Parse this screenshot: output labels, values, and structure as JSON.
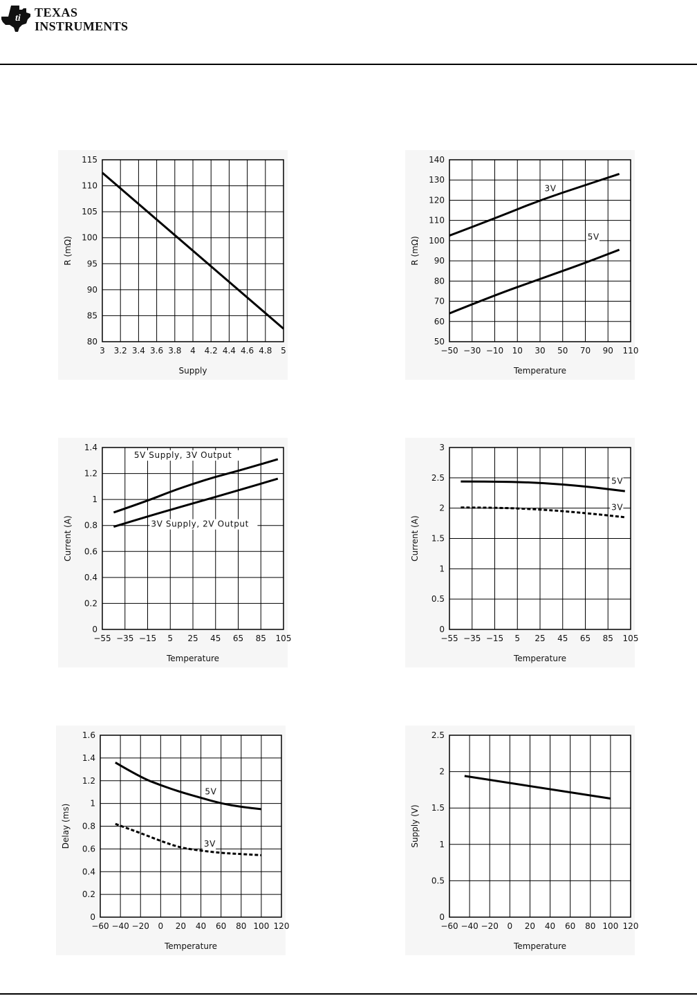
{
  "header": {
    "logo_line1": "Texas",
    "logo_line2": "Instruments"
  },
  "chart_data": [
    {
      "type": "line",
      "xlabel": "Supply",
      "ylabel": "R (mΩ)",
      "xlim": [
        3,
        5
      ],
      "ylim": [
        80,
        115
      ],
      "xticks": [
        "3",
        "3.2",
        "3.4",
        "3.6",
        "3.8",
        "4",
        "4.2",
        "4.4",
        "4.6",
        "4.8",
        "5"
      ],
      "xtick_values": [
        3,
        3.2,
        3.4,
        3.6,
        3.8,
        4,
        4.2,
        4.4,
        4.6,
        4.8,
        5
      ],
      "yticks": [
        "80",
        "85",
        "90",
        "95",
        "100",
        "105",
        "110",
        "115"
      ],
      "ytick_values": [
        80,
        85,
        90,
        95,
        100,
        105,
        110,
        115
      ],
      "grid": true,
      "series": [
        {
          "name": "",
          "style": "solid",
          "x": [
            3,
            5
          ],
          "y": [
            112.5,
            82.5
          ]
        }
      ]
    },
    {
      "type": "line",
      "xlabel": "Temperature",
      "ylabel": "R (mΩ)",
      "xlim": [
        -50,
        110
      ],
      "ylim": [
        50,
        140
      ],
      "xticks": [
        "−50",
        "−30",
        "−10",
        "10",
        "30",
        "50",
        "70",
        "90",
        "110"
      ],
      "xtick_values": [
        -50,
        -30,
        -10,
        10,
        30,
        50,
        70,
        90,
        110
      ],
      "yticks": [
        "50",
        "60",
        "70",
        "80",
        "90",
        "100",
        "110",
        "120",
        "130",
        "140"
      ],
      "ytick_values": [
        50,
        60,
        70,
        80,
        90,
        100,
        110,
        120,
        130,
        140
      ],
      "grid": true,
      "series": [
        {
          "name": "3V",
          "style": "solid",
          "x": [
            -50,
            -10,
            30,
            70,
            100
          ],
          "y": [
            102.5,
            111,
            120,
            127.5,
            133
          ],
          "label_at": [
            34,
            124.5
          ]
        },
        {
          "name": "5V",
          "style": "solid",
          "x": [
            -50,
            -10,
            30,
            70,
            100
          ],
          "y": [
            64,
            73,
            81,
            89,
            95.5
          ],
          "label_at": [
            72,
            100.5
          ]
        }
      ]
    },
    {
      "type": "line",
      "xlabel": "Temperature",
      "ylabel": "Current (A)",
      "xlim": [
        -55,
        105
      ],
      "ylim": [
        0,
        1.4
      ],
      "xticks": [
        "−55",
        "−35",
        "−15",
        "5",
        "25",
        "45",
        "65",
        "85",
        "105"
      ],
      "xtick_values": [
        -55,
        -35,
        -15,
        5,
        25,
        45,
        65,
        85,
        105
      ],
      "yticks": [
        "0",
        "0.2",
        "0.4",
        "0.6",
        "0.8",
        "1",
        "1.2",
        "1.4"
      ],
      "ytick_values": [
        0,
        0.2,
        0.4,
        0.6,
        0.8,
        1,
        1.2,
        1.4
      ],
      "grid": true,
      "series": [
        {
          "name": "5V Supply, 3V Output",
          "style": "solid",
          "x": [
            -45,
            -15,
            5,
            25,
            45,
            65,
            100
          ],
          "y": [
            0.9,
            0.99,
            1.06,
            1.12,
            1.175,
            1.22,
            1.31
          ],
          "label_at": [
            -27,
            1.32
          ]
        },
        {
          "name": "3V Supply, 2V Output",
          "style": "solid",
          "x": [
            -45,
            -15,
            25,
            65,
            100
          ],
          "y": [
            0.79,
            0.87,
            0.97,
            1.07,
            1.16
          ],
          "label_at": [
            -12,
            0.79
          ]
        }
      ]
    },
    {
      "type": "line",
      "xlabel": "Temperature",
      "ylabel": "Current (A)",
      "xlim": [
        -55,
        105
      ],
      "ylim": [
        0,
        3
      ],
      "xticks": [
        "−55",
        "−35",
        "−15",
        "5",
        "25",
        "45",
        "65",
        "85",
        "105"
      ],
      "xtick_values": [
        -55,
        -35,
        -15,
        5,
        25,
        45,
        65,
        85,
        105
      ],
      "yticks": [
        "0",
        "0.5",
        "1",
        "1.5",
        "2",
        "2.5",
        "3"
      ],
      "ytick_values": [
        0,
        0.5,
        1,
        1.5,
        2,
        2.5,
        3
      ],
      "grid": true,
      "series": [
        {
          "name": "5V",
          "style": "solid",
          "x": [
            -45,
            -15,
            25,
            65,
            100
          ],
          "y": [
            2.44,
            2.44,
            2.42,
            2.36,
            2.28
          ],
          "label_at": [
            88,
            2.4
          ]
        },
        {
          "name": "3V",
          "style": "dashed",
          "x": [
            -45,
            -15,
            25,
            65,
            100
          ],
          "y": [
            2.01,
            2.01,
            1.98,
            1.92,
            1.85
          ],
          "label_at": [
            88,
            1.97
          ]
        }
      ]
    },
    {
      "type": "line",
      "xlabel": "Temperature",
      "ylabel": "Delay (ms)",
      "xlim": [
        -60,
        120
      ],
      "ylim": [
        0,
        1.6
      ],
      "xticks": [
        "−60",
        "−40",
        "−20",
        "0",
        "20",
        "40",
        "60",
        "80",
        "100",
        "120"
      ],
      "xtick_values": [
        -60,
        -40,
        -20,
        0,
        20,
        40,
        60,
        80,
        100,
        120
      ],
      "yticks": [
        "0",
        "0.2",
        "0.4",
        "0.6",
        "0.8",
        "1",
        "1.2",
        "1.4",
        "1.6"
      ],
      "ytick_values": [
        0,
        0.2,
        0.4,
        0.6,
        0.8,
        1,
        1.2,
        1.4,
        1.6
      ],
      "grid": true,
      "series": [
        {
          "name": "5V",
          "style": "solid",
          "x": [
            -45,
            -20,
            0,
            20,
            40,
            60,
            80,
            100
          ],
          "y": [
            1.36,
            1.23,
            1.16,
            1.1,
            1.05,
            1.0,
            0.97,
            0.95
          ],
          "label_at": [
            44,
            1.08
          ]
        },
        {
          "name": "3V",
          "style": "dashed",
          "x": [
            -45,
            -20,
            0,
            20,
            40,
            60,
            80,
            100
          ],
          "y": [
            0.82,
            0.74,
            0.67,
            0.61,
            0.585,
            0.565,
            0.555,
            0.545
          ],
          "label_at": [
            43,
            0.62
          ]
        }
      ]
    },
    {
      "type": "line",
      "xlabel": "Temperature",
      "ylabel": "Supply (V)",
      "xlim": [
        -60,
        120
      ],
      "ylim": [
        0,
        2.5
      ],
      "xticks": [
        "−60",
        "−40",
        "−20",
        "0",
        "20",
        "40",
        "60",
        "80",
        "100",
        "120"
      ],
      "xtick_values": [
        -60,
        -40,
        -20,
        0,
        20,
        40,
        60,
        80,
        100,
        120
      ],
      "yticks": [
        "0",
        "0.5",
        "1",
        "1.5",
        "2",
        "2.5"
      ],
      "ytick_values": [
        0,
        0.5,
        1,
        1.5,
        2,
        2.5
      ],
      "grid": true,
      "series": [
        {
          "name": "",
          "style": "solid",
          "x": [
            -45,
            100
          ],
          "y": [
            1.94,
            1.63
          ]
        }
      ]
    }
  ]
}
